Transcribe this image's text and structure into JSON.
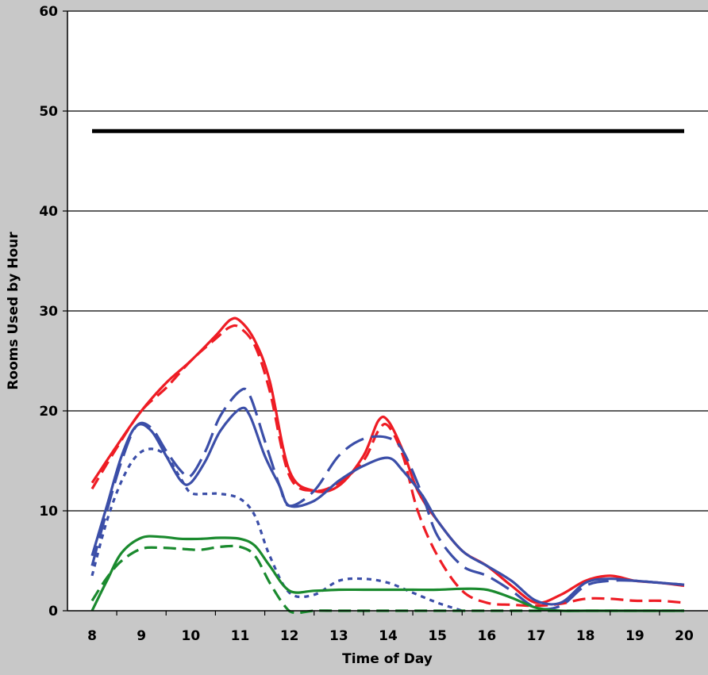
{
  "chart_data": {
    "type": "line",
    "title": "",
    "xlabel": "Time of Day",
    "ylabel": "Rooms Used by Hour",
    "xlim": [
      7.5,
      20.5
    ],
    "ylim": [
      0,
      60
    ],
    "x_ticks": [
      "8",
      "9",
      "10",
      "11",
      "12",
      "13",
      "14",
      "15",
      "16",
      "17",
      "18",
      "19",
      "20"
    ],
    "y_ticks": [
      "0",
      "10",
      "20",
      "30",
      "40",
      "50",
      "60"
    ],
    "grid": "horizontal",
    "legend": "none",
    "background": "#c8c8c8",
    "plot_background": "#ffffff",
    "series": [
      {
        "color": "#000000",
        "style": "solid",
        "width": 5,
        "x": [
          8,
          20
        ],
        "y": [
          48,
          48
        ]
      },
      {
        "color": "#ee1c24",
        "style": "solid",
        "width": 3.2,
        "x": [
          8,
          8.5,
          9,
          9.5,
          10,
          10.5,
          10.8,
          11,
          11.3,
          11.6,
          12,
          12.5,
          13,
          13.5,
          13.8,
          14,
          14.3,
          14.6,
          15,
          15.5,
          16,
          16.5,
          17,
          17.5,
          18,
          18.5,
          19,
          19.5,
          20
        ],
        "y": [
          12.8,
          16.5,
          20,
          22.8,
          25,
          27.5,
          29.1,
          29,
          27,
          23,
          14,
          12,
          12.5,
          15.5,
          19,
          19,
          16,
          12,
          9,
          6,
          4.5,
          2.5,
          0.8,
          1.6,
          3,
          3.5,
          3.0,
          2.8,
          2.5
        ]
      },
      {
        "color": "#ee1c24",
        "style": "dash",
        "width": 3.2,
        "x": [
          8,
          8.5,
          9,
          9.5,
          10,
          10.5,
          10.8,
          11,
          11.3,
          11.6,
          12,
          12.5,
          13,
          13.5,
          13.8,
          14,
          14.3,
          14.6,
          15,
          15.5,
          16,
          16.5,
          17,
          17.5,
          18,
          18.5,
          19,
          19.5,
          20
        ],
        "y": [
          12.2,
          16.3,
          20,
          22.3,
          25,
          27.2,
          28.4,
          28.3,
          26.5,
          22,
          13.5,
          12,
          12.8,
          15,
          18,
          18.5,
          15.5,
          10,
          5.5,
          2,
          0.8,
          0.6,
          0.5,
          0.7,
          1.2,
          1.2,
          1,
          1,
          0.8
        ]
      },
      {
        "color": "#3b4ea8",
        "style": "solid",
        "width": 3.2,
        "x": [
          8,
          8.3,
          8.6,
          8.9,
          9.2,
          9.5,
          9.8,
          10,
          10.3,
          10.6,
          11,
          11.2,
          11.5,
          11.8,
          12,
          12.5,
          13,
          13.5,
          14,
          14.3,
          14.7,
          15,
          15.5,
          16,
          16.5,
          17,
          17.5,
          18,
          18.5,
          19,
          19.5,
          20
        ],
        "y": [
          5.5,
          10.5,
          15.5,
          18.5,
          18,
          15.5,
          13,
          12.8,
          15,
          18,
          20.2,
          19.5,
          15.5,
          12.5,
          10.5,
          11,
          13,
          14.5,
          15.3,
          14,
          11.5,
          9,
          6,
          4.5,
          3,
          1,
          0.8,
          2.8,
          3.2,
          3.0,
          2.8,
          2.6
        ]
      },
      {
        "color": "#3b4ea8",
        "style": "longdash",
        "width": 3.2,
        "x": [
          8,
          8.3,
          8.6,
          8.9,
          9.2,
          9.5,
          9.8,
          10,
          10.3,
          10.6,
          11,
          11.2,
          11.5,
          11.8,
          12,
          12.5,
          13,
          13.5,
          14,
          14.3,
          14.7,
          15,
          15.5,
          16,
          16.5,
          17,
          17.5,
          18,
          18.5,
          19,
          19.5,
          20
        ],
        "y": [
          4.5,
          10,
          15,
          18.5,
          18.3,
          16,
          14,
          13.5,
          16,
          19.5,
          22,
          21.5,
          17,
          12.5,
          10.5,
          12,
          15.5,
          17.2,
          17.3,
          16,
          11.5,
          7.5,
          4.5,
          3.5,
          2,
          0.3,
          0.5,
          2.5,
          3,
          3.0,
          2.8,
          2.6
        ]
      },
      {
        "color": "#3b4ea8",
        "style": "dot",
        "width": 3.2,
        "x": [
          8,
          8.3,
          8.6,
          8.9,
          9.2,
          9.5,
          9.8,
          10,
          10.3,
          10.6,
          11,
          11.3,
          11.6,
          12,
          12.5,
          13,
          13.5,
          14,
          14.5,
          15,
          15.5
        ],
        "y": [
          3.5,
          9,
          13,
          15.5,
          16.2,
          15.5,
          13.2,
          11.8,
          11.7,
          11.7,
          11.2,
          9.5,
          5.5,
          1.8,
          1.6,
          3,
          3.2,
          2.8,
          1.8,
          0.8,
          0
        ]
      },
      {
        "color": "#1a8a2e",
        "style": "solid",
        "width": 3.2,
        "x": [
          8,
          8.3,
          8.6,
          9,
          9.4,
          9.8,
          10.2,
          10.6,
          11,
          11.3,
          11.6,
          12,
          12.5,
          13,
          13.5,
          14,
          14.5,
          15,
          15.5,
          16,
          16.5,
          17,
          17.5,
          18,
          19,
          20
        ],
        "y": [
          0,
          3,
          5.8,
          7.3,
          7.4,
          7.2,
          7.2,
          7.3,
          7.2,
          6.5,
          4.5,
          2,
          2,
          2.1,
          2.1,
          2.1,
          2.1,
          2.1,
          2.2,
          2.1,
          1.3,
          0.3,
          0,
          0,
          0,
          0
        ]
      },
      {
        "color": "#1a8a2e",
        "style": "dash",
        "width": 3.2,
        "x": [
          8,
          8.3,
          8.6,
          9,
          9.4,
          9.8,
          10.2,
          10.6,
          11,
          11.3,
          11.6,
          11.9,
          12.1,
          12.5,
          13,
          14,
          15,
          16,
          17,
          18,
          19,
          20
        ],
        "y": [
          1,
          3.3,
          5,
          6.2,
          6.3,
          6.2,
          6.1,
          6.4,
          6.4,
          5.5,
          2.8,
          0.5,
          -0.2,
          0,
          0,
          0,
          0,
          0,
          0,
          0,
          0,
          0
        ]
      }
    ]
  }
}
